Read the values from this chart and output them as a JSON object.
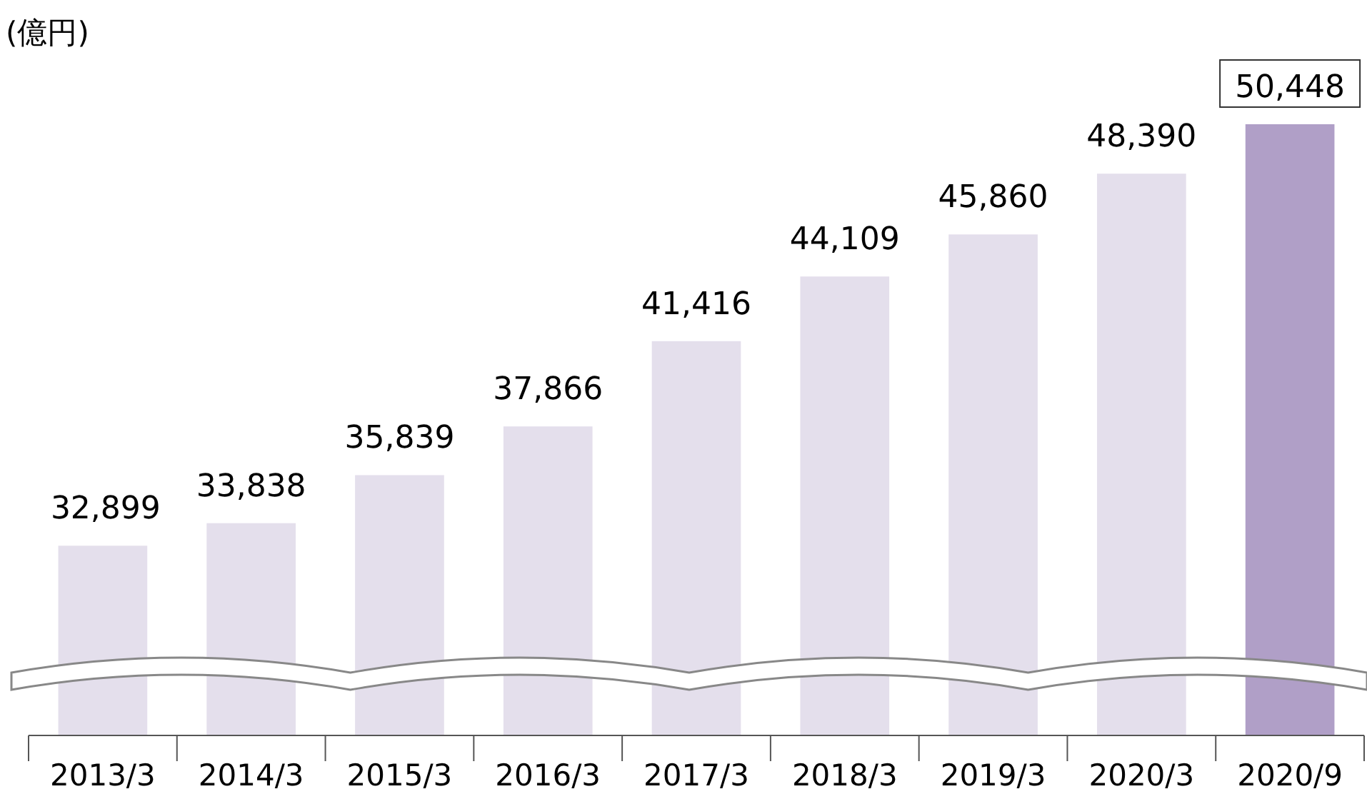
{
  "chart_data": {
    "type": "bar",
    "ylabel": "(億円)",
    "categories": [
      "2013/3",
      "2014/3",
      "2015/3",
      "2016/3",
      "2017/3",
      "2018/3",
      "2019/3",
      "2020/3",
      "2020/9"
    ],
    "values": [
      32899,
      33838,
      35839,
      37866,
      41416,
      44109,
      45860,
      48390,
      50448
    ],
    "colors": [
      "#e4dfec",
      "#e4dfec",
      "#e4dfec",
      "#e4dfec",
      "#e4dfec",
      "#e4dfec",
      "#e4dfec",
      "#e4dfec",
      "#b09fc7"
    ],
    "value_labels": [
      "32,899",
      "33,838",
      "35,839",
      "37,866",
      "41,416",
      "44,109",
      "45,860",
      "48,390",
      "50,448"
    ],
    "ylim": [
      25000,
      50448
    ],
    "tick_labels": "x"
  }
}
